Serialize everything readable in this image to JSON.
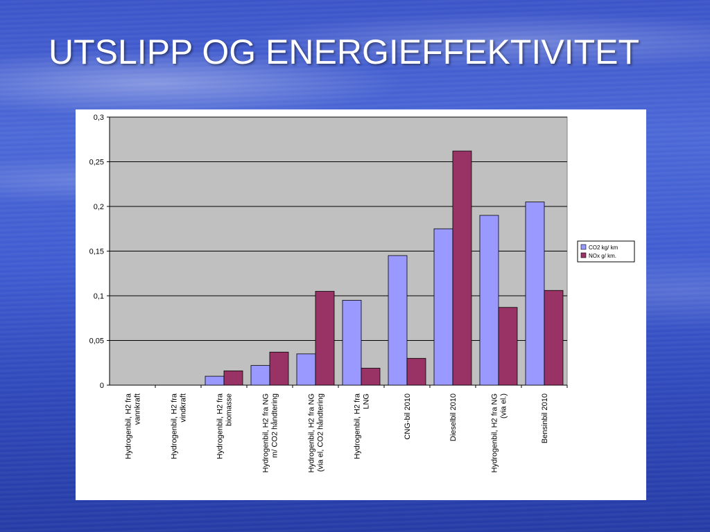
{
  "slide": {
    "title": "UTSLIPP OG ENERGIEFFEKTIVITET"
  },
  "colors": {
    "plot_background": "#c0c0c0",
    "co2": "#9999ff",
    "nox": "#993366",
    "gridline": "#000000"
  },
  "chart_data": {
    "type": "bar",
    "categories": [
      [
        "Hydrogenbil, H2 fra",
        "vannkraft"
      ],
      [
        "Hydrogenbil, H2 fra",
        "vindkraft"
      ],
      [
        "Hydrogenbil, H2 fra",
        "biomasse"
      ],
      [
        "Hydrogenbil, H2 fra NG",
        "m/ CO2 håndtering"
      ],
      [
        "Hydrogenbil, H2 fra NG",
        "(via el, CO2 håndtering"
      ],
      [
        "Hydrogenbil, H2 fra",
        "LNG"
      ],
      [
        "CNG-bil 2010"
      ],
      [
        "Dieselbil 2010"
      ],
      [
        "Hydrogenbil, H2 fra NG",
        "(via el.)"
      ],
      [
        "Bensinbil 2010"
      ]
    ],
    "series": [
      {
        "name": "CO2 kg/ km",
        "color": "#9999ff",
        "values": [
          0,
          0,
          0.01,
          0.022,
          0.035,
          0.095,
          0.145,
          0.175,
          0.19,
          0.205
        ]
      },
      {
        "name": "NOx g/ km.",
        "color": "#993366",
        "values": [
          0,
          0,
          0.016,
          0.037,
          0.105,
          0.019,
          0.03,
          0.262,
          0.087,
          0.106
        ]
      }
    ],
    "ylim": [
      0,
      0.3
    ],
    "yticks": [
      0,
      0.05,
      0.1,
      0.15,
      0.2,
      0.25,
      0.3
    ],
    "ytick_labels": [
      "0",
      "0,05",
      "0,1",
      "0,15",
      "0,2",
      "0,25",
      "0,3"
    ],
    "grid": true,
    "legend_position": "right"
  }
}
